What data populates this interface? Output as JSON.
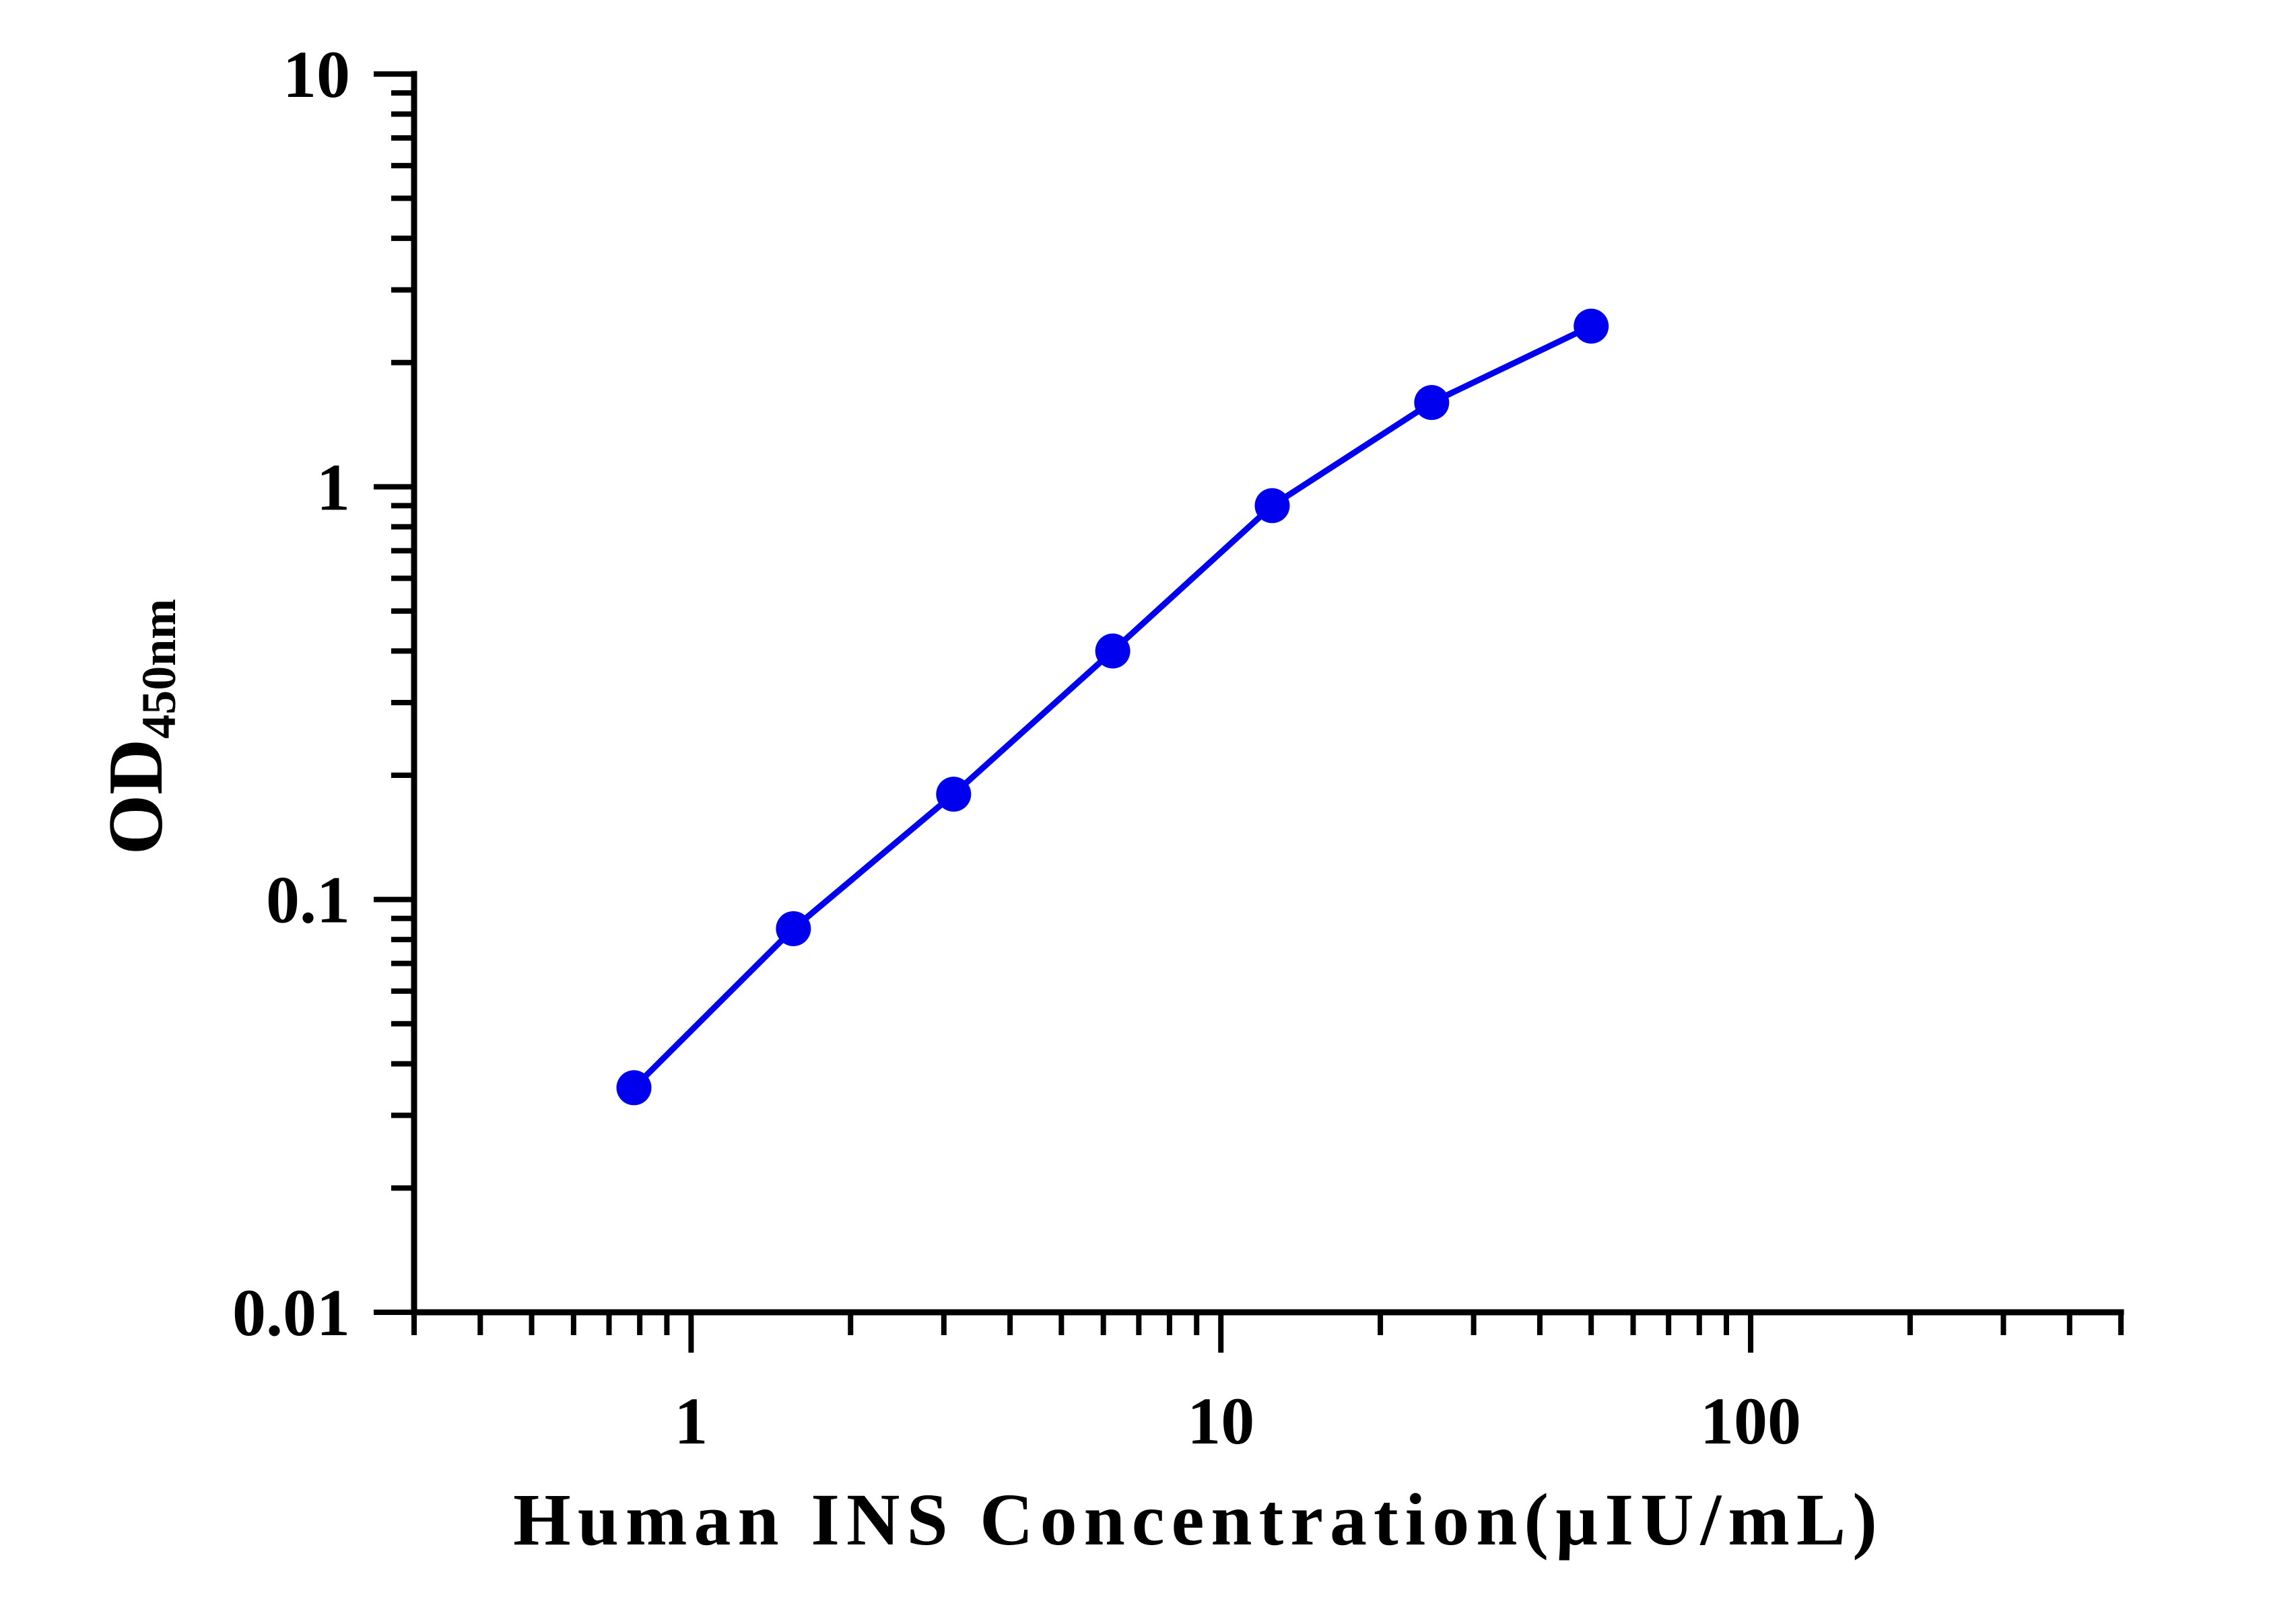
{
  "chart_data": {
    "type": "line",
    "xlabel": "Human INS Concentration(µIU/mL)",
    "ylabel": "OD",
    "ylabel_subscript": "450nm",
    "x_scale": "log",
    "y_scale": "log",
    "xlim": [
      0.3,
      500
    ],
    "ylim": [
      0.01,
      10
    ],
    "x_ticks": [
      {
        "value": 1,
        "label": "1"
      },
      {
        "value": 10,
        "label": "10"
      },
      {
        "value": 100,
        "label": "100"
      }
    ],
    "y_ticks": [
      {
        "value": 0.01,
        "label": "0.01"
      },
      {
        "value": 0.1,
        "label": "0.1"
      },
      {
        "value": 1,
        "label": "1"
      },
      {
        "value": 10,
        "label": "10"
      }
    ],
    "grid": false,
    "legend": "none",
    "series": [
      {
        "color": "#0000ee",
        "x": [
          0.78,
          1.56,
          3.13,
          6.25,
          12.5,
          25,
          50
        ],
        "y": [
          0.035,
          0.085,
          0.18,
          0.4,
          0.9,
          1.6,
          2.45
        ]
      }
    ]
  }
}
